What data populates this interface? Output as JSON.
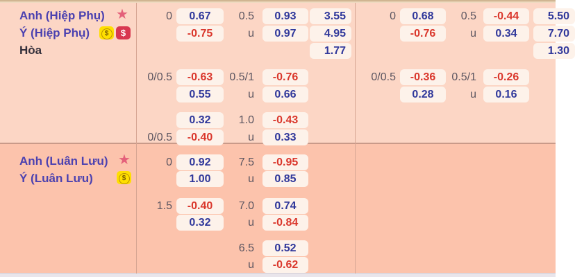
{
  "board": {
    "icon_glyphs": {
      "star": "★",
      "coin": "$",
      "dollar": "$"
    },
    "colors": {
      "odds_positive": "#30389b",
      "odds_negative": "#da372c",
      "team_name": "#4b41b0",
      "section_top_bg": "#fcd6c5",
      "section_bottom_bg": "#fcc3ac",
      "odds_cell_bg": "#fdf2ea",
      "star": "#e4607a",
      "coin_bg": "#ffdf00",
      "dollar_bg": "#d8374f"
    },
    "sections": [
      {
        "id": "extra-time",
        "teams": [
          {
            "name": "Anh (Hiệp Phụ)"
          },
          {
            "name": "Ý (Hiệp Phụ)"
          },
          {
            "name": "Hòa"
          }
        ],
        "rows": [
          {
            "g1": {
              "h1": "0",
              "o1": "0.67",
              "h2": "0.5",
              "o2": "0.93",
              "x": "3.55"
            },
            "g2": {
              "h1": "0",
              "o1": "0.68",
              "h2": "0.5",
              "o2": "-0.44",
              "x": "5.50"
            }
          },
          {
            "g1": {
              "o1": "-0.75",
              "h2": "u",
              "o2": "0.97",
              "x": "4.95"
            },
            "g2": {
              "o1": "-0.76",
              "h2": "u",
              "o2": "0.34",
              "x": "7.70"
            }
          },
          {
            "g1": {
              "x": "1.77"
            },
            "g2": {
              "x": "1.30"
            }
          },
          {
            "g1": {
              "h1": "0/0.5",
              "o1": "-0.63",
              "h2": "0.5/1",
              "o2": "-0.76"
            },
            "g2": {
              "h1": "0/0.5",
              "o1": "-0.36",
              "h2": "0.5/1",
              "o2": "-0.26"
            }
          },
          {
            "g1": {
              "o1": "0.55",
              "h2": "u",
              "o2": "0.66"
            },
            "g2": {
              "o1": "0.28",
              "h2": "u",
              "o2": "0.16"
            }
          },
          {
            "g1": {
              "o1": "0.32",
              "h2": "1.0",
              "o2": "-0.43"
            }
          },
          {
            "g1": {
              "h1": "0/0.5",
              "o1": "-0.40",
              "h2": "u",
              "o2": "0.33"
            }
          }
        ]
      },
      {
        "id": "penalty-shootout",
        "teams": [
          {
            "name": "Anh (Luân Lưu)"
          },
          {
            "name": "Ý (Luân Lưu)"
          }
        ],
        "rows": [
          {
            "g1": {
              "h1": "0",
              "o1": "0.92",
              "h2": "7.5",
              "o2": "-0.95"
            }
          },
          {
            "g1": {
              "o1": "1.00",
              "h2": "u",
              "o2": "0.85"
            }
          },
          {
            "g1": {
              "h1": "1.5",
              "o1": "-0.40",
              "h2": "7.0",
              "o2": "0.74"
            }
          },
          {
            "g1": {
              "o1": "0.32",
              "h2": "u",
              "o2": "-0.84"
            }
          },
          {
            "g1": {
              "h2": "6.5",
              "o2": "0.52"
            }
          },
          {
            "g1": {
              "h2": "u",
              "o2": "-0.62"
            }
          }
        ]
      }
    ]
  }
}
